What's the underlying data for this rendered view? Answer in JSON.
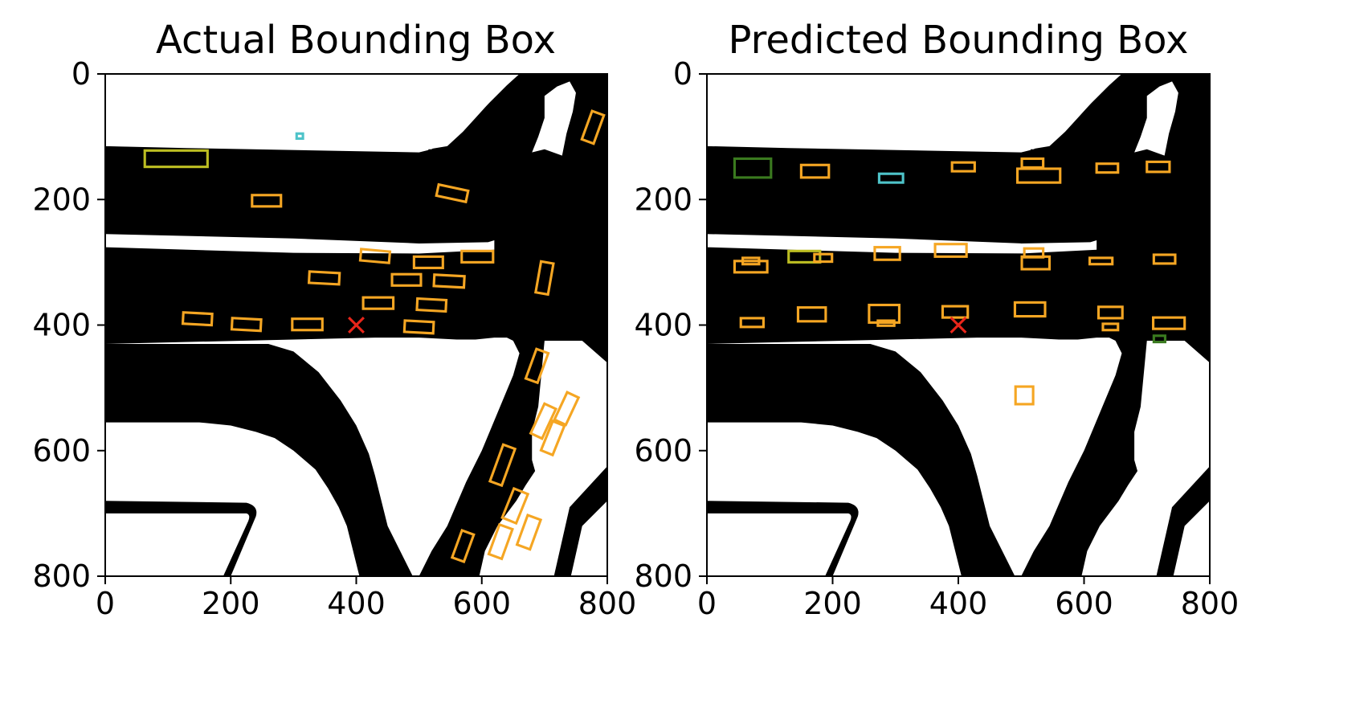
{
  "chart_data": [
    {
      "type": "scatter",
      "title": "Actual Bounding Box",
      "xlim": [
        0,
        800
      ],
      "ylim": [
        800,
        0
      ],
      "xticks": [
        "0",
        "200",
        "400",
        "600",
        "800"
      ],
      "yticks": [
        "0",
        "200",
        "400",
        "600",
        "800"
      ],
      "colors": {
        "car": "#f5a623",
        "truck": "#bcbd22",
        "pedestrian": "#4ec3c9",
        "ego": "#e8251a"
      },
      "ego": {
        "x": 400,
        "y": 400
      },
      "boxes": [
        {
          "cx": 113,
          "cy": 135,
          "w": 100,
          "h": 26,
          "a": 0,
          "cls": "truck"
        },
        {
          "cx": 310,
          "cy": 99,
          "w": 10,
          "h": 8,
          "a": 0,
          "cls": "pedestrian"
        },
        {
          "cx": 257,
          "cy": 202,
          "w": 46,
          "h": 18,
          "a": 0,
          "cls": "car"
        },
        {
          "cx": 553,
          "cy": 190,
          "w": 48,
          "h": 18,
          "a": 12,
          "cls": "car"
        },
        {
          "cx": 777,
          "cy": 85,
          "w": 48,
          "h": 20,
          "a": -70,
          "cls": "car"
        },
        {
          "cx": 430,
          "cy": 290,
          "w": 46,
          "h": 18,
          "a": 5,
          "cls": "car"
        },
        {
          "cx": 515,
          "cy": 300,
          "w": 46,
          "h": 18,
          "a": 0,
          "cls": "car"
        },
        {
          "cx": 593,
          "cy": 291,
          "w": 50,
          "h": 18,
          "a": 0,
          "cls": "car"
        },
        {
          "cx": 349,
          "cy": 325,
          "w": 48,
          "h": 18,
          "a": 3,
          "cls": "car"
        },
        {
          "cx": 480,
          "cy": 328,
          "w": 46,
          "h": 18,
          "a": 0,
          "cls": "car"
        },
        {
          "cx": 548,
          "cy": 330,
          "w": 48,
          "h": 18,
          "a": 3,
          "cls": "car"
        },
        {
          "cx": 700,
          "cy": 325,
          "w": 50,
          "h": 20,
          "a": -80,
          "cls": "car"
        },
        {
          "cx": 435,
          "cy": 365,
          "w": 48,
          "h": 18,
          "a": 0,
          "cls": "car"
        },
        {
          "cx": 520,
          "cy": 368,
          "w": 46,
          "h": 18,
          "a": 3,
          "cls": "car"
        },
        {
          "cx": 147,
          "cy": 390,
          "w": 46,
          "h": 18,
          "a": 3,
          "cls": "car"
        },
        {
          "cx": 225,
          "cy": 399,
          "w": 46,
          "h": 18,
          "a": 3,
          "cls": "car"
        },
        {
          "cx": 322,
          "cy": 399,
          "w": 48,
          "h": 18,
          "a": 0,
          "cls": "car"
        },
        {
          "cx": 500,
          "cy": 403,
          "w": 46,
          "h": 18,
          "a": 3,
          "cls": "car"
        },
        {
          "cx": 688,
          "cy": 465,
          "w": 50,
          "h": 20,
          "a": -70,
          "cls": "car"
        },
        {
          "cx": 698,
          "cy": 553,
          "w": 52,
          "h": 20,
          "a": -65,
          "cls": "car"
        },
        {
          "cx": 735,
          "cy": 533,
          "w": 48,
          "h": 20,
          "a": -65,
          "cls": "car"
        },
        {
          "cx": 713,
          "cy": 580,
          "w": 50,
          "h": 20,
          "a": -68,
          "cls": "car"
        },
        {
          "cx": 633,
          "cy": 623,
          "w": 62,
          "h": 20,
          "a": -70,
          "cls": "car"
        },
        {
          "cx": 653,
          "cy": 688,
          "w": 50,
          "h": 24,
          "a": -68,
          "cls": "car"
        },
        {
          "cx": 675,
          "cy": 730,
          "w": 50,
          "h": 22,
          "a": -70,
          "cls": "car"
        },
        {
          "cx": 630,
          "cy": 745,
          "w": 50,
          "h": 22,
          "a": -70,
          "cls": "car"
        },
        {
          "cx": 570,
          "cy": 752,
          "w": 46,
          "h": 20,
          "a": -70,
          "cls": "car"
        }
      ]
    },
    {
      "type": "scatter",
      "title": "Predicted Bounding Box",
      "xlim": [
        0,
        800
      ],
      "ylim": [
        800,
        0
      ],
      "xticks": [
        "0",
        "200",
        "400",
        "600",
        "800"
      ],
      "yticks": [
        "0",
        "200",
        "400",
        "600",
        "800"
      ],
      "colors": {
        "car": "#f5a623",
        "truck": "#bcbd22",
        "pedestrian": "#4ec3c9",
        "bus": "#3a7a1f",
        "ego": "#e8251a"
      },
      "ego": {
        "x": 400,
        "y": 400
      },
      "boxes": [
        {
          "cx": 73,
          "cy": 150,
          "w": 58,
          "h": 30,
          "a": 0,
          "cls": "bus"
        },
        {
          "cx": 172,
          "cy": 155,
          "w": 44,
          "h": 20,
          "a": 0,
          "cls": "car"
        },
        {
          "cx": 293,
          "cy": 166,
          "w": 38,
          "h": 14,
          "a": 0,
          "cls": "pedestrian"
        },
        {
          "cx": 408,
          "cy": 148,
          "w": 36,
          "h": 14,
          "a": 0,
          "cls": "car"
        },
        {
          "cx": 518,
          "cy": 142,
          "w": 34,
          "h": 14,
          "a": 0,
          "cls": "car"
        },
        {
          "cx": 528,
          "cy": 162,
          "w": 68,
          "h": 22,
          "a": 0,
          "cls": "car"
        },
        {
          "cx": 637,
          "cy": 150,
          "w": 34,
          "h": 14,
          "a": 0,
          "cls": "car"
        },
        {
          "cx": 718,
          "cy": 148,
          "w": 36,
          "h": 16,
          "a": 0,
          "cls": "car"
        },
        {
          "cx": 70,
          "cy": 298,
          "w": 26,
          "h": 10,
          "a": 0,
          "cls": "car"
        },
        {
          "cx": 70,
          "cy": 307,
          "w": 52,
          "h": 18,
          "a": 0,
          "cls": "car"
        },
        {
          "cx": 155,
          "cy": 291,
          "w": 50,
          "h": 18,
          "a": 0,
          "cls": "truck"
        },
        {
          "cx": 185,
          "cy": 293,
          "w": 28,
          "h": 12,
          "a": 0,
          "cls": "car"
        },
        {
          "cx": 287,
          "cy": 286,
          "w": 40,
          "h": 20,
          "a": 0,
          "cls": "car"
        },
        {
          "cx": 388,
          "cy": 281,
          "w": 50,
          "h": 20,
          "a": 0,
          "cls": "car"
        },
        {
          "cx": 520,
          "cy": 285,
          "w": 30,
          "h": 14,
          "a": 0,
          "cls": "car"
        },
        {
          "cx": 523,
          "cy": 301,
          "w": 44,
          "h": 20,
          "a": 0,
          "cls": "car"
        },
        {
          "cx": 627,
          "cy": 298,
          "w": 36,
          "h": 10,
          "a": 0,
          "cls": "car"
        },
        {
          "cx": 728,
          "cy": 295,
          "w": 34,
          "h": 14,
          "a": 0,
          "cls": "car"
        },
        {
          "cx": 72,
          "cy": 396,
          "w": 36,
          "h": 14,
          "a": 0,
          "cls": "car"
        },
        {
          "cx": 167,
          "cy": 383,
          "w": 44,
          "h": 22,
          "a": 0,
          "cls": "car"
        },
        {
          "cx": 282,
          "cy": 382,
          "w": 48,
          "h": 28,
          "a": 0,
          "cls": "car"
        },
        {
          "cx": 285,
          "cy": 397,
          "w": 26,
          "h": 8,
          "a": 0,
          "cls": "car"
        },
        {
          "cx": 395,
          "cy": 379,
          "w": 40,
          "h": 18,
          "a": 0,
          "cls": "car"
        },
        {
          "cx": 514,
          "cy": 375,
          "w": 48,
          "h": 22,
          "a": 0,
          "cls": "car"
        },
        {
          "cx": 642,
          "cy": 380,
          "w": 38,
          "h": 18,
          "a": 0,
          "cls": "car"
        },
        {
          "cx": 642,
          "cy": 403,
          "w": 24,
          "h": 10,
          "a": 0,
          "cls": "car"
        },
        {
          "cx": 735,
          "cy": 397,
          "w": 50,
          "h": 18,
          "a": 0,
          "cls": "car"
        },
        {
          "cx": 720,
          "cy": 422,
          "w": 18,
          "h": 10,
          "a": 0,
          "cls": "bus"
        },
        {
          "cx": 505,
          "cy": 512,
          "w": 28,
          "h": 28,
          "a": 0,
          "cls": "car"
        }
      ]
    }
  ]
}
